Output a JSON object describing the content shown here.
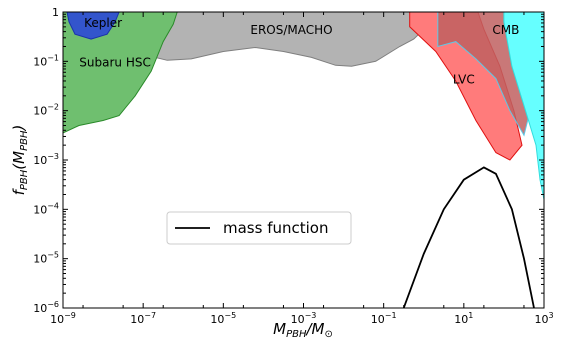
{
  "chart_data": {
    "type": "area",
    "x_scale": "log",
    "y_scale": "log",
    "xlim": [
      "1e-9",
      "1e3"
    ],
    "ylim": [
      "1e-6",
      "1"
    ],
    "xlabel": {
      "base": "M",
      "sub": "PBH",
      "sep": "/",
      "base2": "M",
      "sub2": "⊙"
    },
    "ylabel": {
      "base": "f",
      "sub": "PBH",
      "open": "(",
      "arg": "M",
      "argsub": "PBH",
      "close": ")"
    },
    "x_ticks": [
      {
        "base": "10",
        "exp": "−9",
        "log": -9
      },
      {
        "base": "10",
        "exp": "−7",
        "log": -7
      },
      {
        "base": "10",
        "exp": "−5",
        "log": -5
      },
      {
        "base": "10",
        "exp": "−3",
        "log": -3
      },
      {
        "base": "10",
        "exp": "−1",
        "log": -1
      },
      {
        "base": "10",
        "exp": "1",
        "log": 1
      },
      {
        "base": "10",
        "exp": "3",
        "log": 3
      }
    ],
    "y_ticks": [
      {
        "base": "10",
        "exp": "−6",
        "log": -6
      },
      {
        "base": "10",
        "exp": "−5",
        "log": -5
      },
      {
        "base": "10",
        "exp": "−4",
        "log": -4
      },
      {
        "base": "10",
        "exp": "−3",
        "log": -3
      },
      {
        "base": "10",
        "exp": "−2",
        "log": -2
      },
      {
        "base": "10",
        "exp": "−1",
        "log": -1
      },
      {
        "base": "1",
        "exp": "0",
        "log": 0
      }
    ],
    "regions": [
      {
        "name": "EROS/MACHO",
        "color": "#b3b3b3",
        "edge": "#7f7f7f",
        "boundary_log": [
          [
            -7.2,
            0
          ],
          [
            -7.2,
            -0.45
          ],
          [
            -6.8,
            -0.9
          ],
          [
            -6.4,
            -0.98
          ],
          [
            -5.8,
            -0.95
          ],
          [
            -5,
            -0.8
          ],
          [
            -4.2,
            -0.72
          ],
          [
            -3.5,
            -0.8
          ],
          [
            -2.8,
            -0.92
          ],
          [
            -2.2,
            -1.08
          ],
          [
            -1.8,
            -1.1
          ],
          [
            -1.2,
            -1.0
          ],
          [
            -0.6,
            -0.7
          ],
          [
            -0.25,
            -0.55
          ],
          [
            0,
            -0.35
          ],
          [
            0,
            0
          ]
        ]
      },
      {
        "name": "Subaru HSC",
        "color": "#6fbf6f",
        "edge": "#2a8a2a",
        "boundary_log": [
          [
            -9,
            0
          ],
          [
            -9,
            -2.45
          ],
          [
            -8.6,
            -2.3
          ],
          [
            -8,
            -2.2
          ],
          [
            -7.6,
            -2.1
          ],
          [
            -7.2,
            -1.7
          ],
          [
            -6.8,
            -1.2
          ],
          [
            -6.5,
            -0.6
          ],
          [
            -6.25,
            -0.25
          ],
          [
            -6.15,
            0
          ]
        ]
      },
      {
        "name": "Kepler",
        "color": "#3355cc",
        "edge": "#1a33aa",
        "boundary_log": [
          [
            -8.9,
            0
          ],
          [
            -8.85,
            -0.2
          ],
          [
            -8.7,
            -0.45
          ],
          [
            -8.3,
            -0.55
          ],
          [
            -7.9,
            -0.45
          ],
          [
            -7.7,
            -0.2
          ],
          [
            -7.6,
            0
          ]
        ]
      },
      {
        "name": "LVC",
        "color": "#ff7b7b",
        "edge": "#e01010",
        "boundary_log": [
          [
            -0.35,
            0
          ],
          [
            -0.35,
            -0.3
          ],
          [
            0.3,
            -0.8
          ],
          [
            0.8,
            -1.4
          ],
          [
            1.3,
            -2.2
          ],
          [
            1.8,
            -2.85
          ],
          [
            2.15,
            -3.0
          ],
          [
            2.45,
            -2.7
          ],
          [
            2.25,
            -2.0
          ],
          [
            1.9,
            -1.1
          ],
          [
            1.5,
            -0.35
          ],
          [
            1.35,
            0
          ]
        ]
      },
      {
        "name": "CMB",
        "color": "#c06060",
        "edge": "#5ec8e6",
        "boundary_log": [
          [
            0.35,
            0
          ],
          [
            0.35,
            -0.7
          ],
          [
            0.8,
            -0.6
          ],
          [
            1.3,
            -0.95
          ],
          [
            1.8,
            -1.35
          ],
          [
            2.15,
            -2.0
          ],
          [
            2.5,
            -2.5
          ],
          [
            2.9,
            -1.2
          ],
          [
            3.0,
            0
          ]
        ]
      },
      {
        "name": "",
        "color": "#66ffff",
        "edge": "#33dddd",
        "boundary_log": [
          [
            2.0,
            0
          ],
          [
            2.0,
            -0.2
          ],
          [
            2.2,
            -1.1
          ],
          [
            2.5,
            -1.9
          ],
          [
            2.8,
            -2.7
          ],
          [
            2.9,
            -3.4
          ],
          [
            3.0,
            -3.8
          ],
          [
            3.0,
            0
          ]
        ]
      }
    ],
    "mass_function": {
      "name": "mass function",
      "color": "#000000",
      "points_log": [
        [
          -0.5,
          -6.0
        ],
        [
          0.0,
          -4.9
        ],
        [
          0.5,
          -4.0
        ],
        [
          1.0,
          -3.4
        ],
        [
          1.5,
          -3.15
        ],
        [
          1.8,
          -3.28
        ],
        [
          2.2,
          -4.0
        ],
        [
          2.5,
          -5.0
        ],
        [
          2.75,
          -6.0
        ]
      ]
    },
    "legend": {
      "entries": [
        "mass function"
      ],
      "position": "center-left"
    },
    "grid": false
  }
}
